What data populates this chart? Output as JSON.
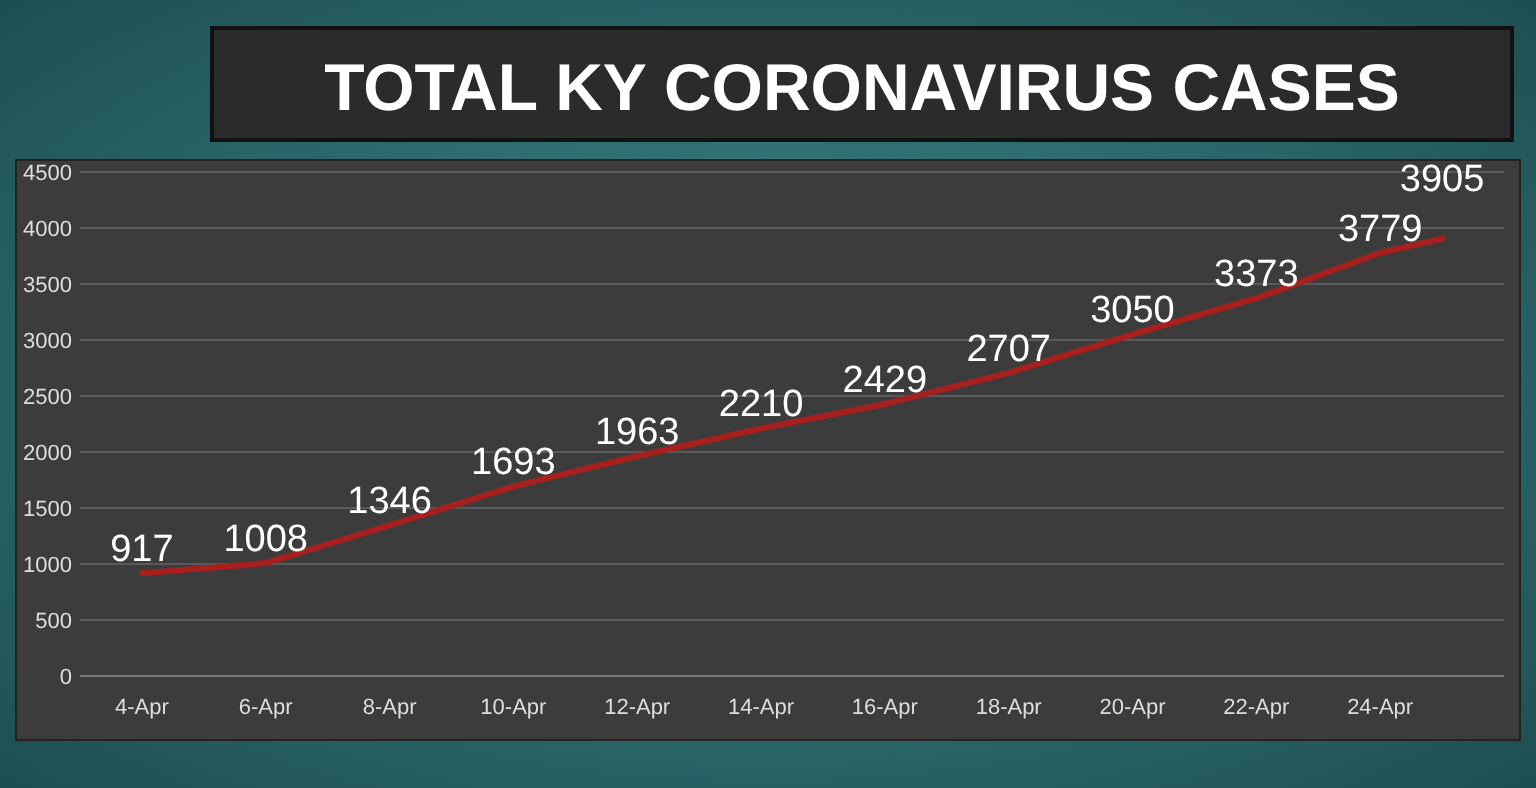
{
  "chart_data": {
    "type": "line",
    "title": "TOTAL KY CORONAVIRUS CASES",
    "x": [
      "--04-04",
      "--04-06",
      "--04-08",
      "--04-10",
      "--04-12",
      "--04-14",
      "--04-16",
      "--04-18",
      "--04-20",
      "--04-22",
      "--04-24",
      "--04-25"
    ],
    "series": [
      {
        "color": "#a8201e",
        "values": [
          917,
          1008,
          1346,
          1693,
          1963,
          2210,
          2429,
          2707,
          3050,
          3373,
          3779,
          3905
        ]
      }
    ],
    "xlim": [
      "--04-03",
      "--04-26"
    ],
    "xticks": [
      {
        "value": "--04-04",
        "label": "4-Apr"
      },
      {
        "value": "--04-06",
        "label": "6-Apr"
      },
      {
        "value": "--04-08",
        "label": "8-Apr"
      },
      {
        "value": "--04-10",
        "label": "10-Apr"
      },
      {
        "value": "--04-12",
        "label": "12-Apr"
      },
      {
        "value": "--04-14",
        "label": "14-Apr"
      },
      {
        "value": "--04-16",
        "label": "16-Apr"
      },
      {
        "value": "--04-18",
        "label": "18-Apr"
      },
      {
        "value": "--04-20",
        "label": "20-Apr"
      },
      {
        "value": "--04-22",
        "label": "22-Apr"
      },
      {
        "value": "--04-24",
        "label": "24-Apr"
      }
    ],
    "ylim": [
      0,
      4500
    ],
    "yticks": [
      0,
      500,
      1000,
      1500,
      2000,
      2500,
      3000,
      3500,
      4000,
      4500
    ],
    "grid": "y",
    "marker": "none",
    "line_style": "solid",
    "data_labels": true
  }
}
